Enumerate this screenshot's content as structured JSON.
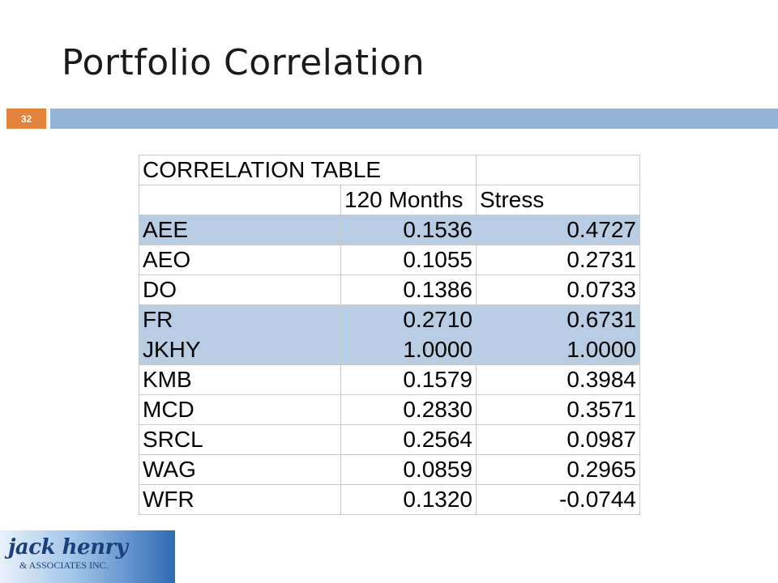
{
  "slide": {
    "title": "Portfolio Correlation",
    "number": "32"
  },
  "table": {
    "title": "CORRELATION TABLE",
    "columns": [
      "120 Months",
      "Stress"
    ],
    "rows": [
      {
        "ticker": "AEE",
        "months120": "0.1536",
        "stress": "0.4727",
        "highlight": true
      },
      {
        "ticker": "AEO",
        "months120": "0.1055",
        "stress": "0.2731",
        "highlight": false
      },
      {
        "ticker": "DO",
        "months120": "0.1386",
        "stress": "0.0733",
        "highlight": false
      },
      {
        "ticker": "FR",
        "months120": "0.2710",
        "stress": "0.6731",
        "highlight": true
      },
      {
        "ticker": "JKHY",
        "months120": "1.0000",
        "stress": "1.0000",
        "highlight": true
      },
      {
        "ticker": "KMB",
        "months120": "0.1579",
        "stress": "0.3984",
        "highlight": false
      },
      {
        "ticker": "MCD",
        "months120": "0.2830",
        "stress": "0.3571",
        "highlight": false
      },
      {
        "ticker": "SRCL",
        "months120": "0.2564",
        "stress": "0.0987",
        "highlight": false
      },
      {
        "ticker": "WAG",
        "months120": "0.0859",
        "stress": "0.2965",
        "highlight": false
      },
      {
        "ticker": "WFR",
        "months120": "0.1320",
        "stress": "-0.0744",
        "highlight": false
      }
    ]
  },
  "logo": {
    "main": "jack henry",
    "sub": "& ASSOCIATES INC."
  },
  "colors": {
    "title_bar": "#94b4d5",
    "slide_number_bg": "#e3833c",
    "row_highlight": "#b8cce4"
  }
}
